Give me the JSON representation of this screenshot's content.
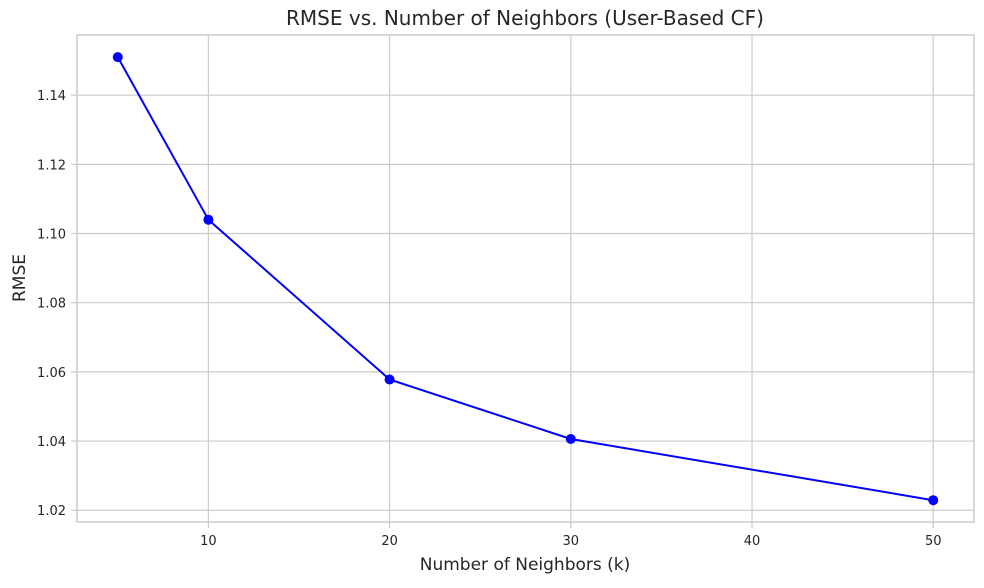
{
  "chart_data": {
    "type": "line",
    "title": "RMSE vs. Number of Neighbors (User-Based CF)",
    "xlabel": "Number of Neighbors (k)",
    "ylabel": "RMSE",
    "x": [
      5,
      10,
      20,
      30,
      50
    ],
    "series": [
      {
        "values": [
          1.151,
          1.104,
          1.0578,
          1.0406,
          1.0229
        ],
        "color": "#0000ff",
        "marker": "circle"
      }
    ],
    "xlim": [
      2.75,
      52.25
    ],
    "ylim": [
      1.0166,
      1.1574
    ],
    "xticks": [
      10,
      20,
      30,
      40,
      50
    ],
    "xtick_labels": [
      "10",
      "20",
      "30",
      "40",
      "50"
    ],
    "yticks": [
      1.02,
      1.04,
      1.06,
      1.08,
      1.1,
      1.12,
      1.14
    ],
    "ytick_labels": [
      "1.02",
      "1.04",
      "1.06",
      "1.08",
      "1.10",
      "1.12",
      "1.14"
    ],
    "grid": true,
    "style": {
      "grid_color": "#cccccc",
      "text_color": "#262626",
      "background": "#ffffff"
    }
  }
}
